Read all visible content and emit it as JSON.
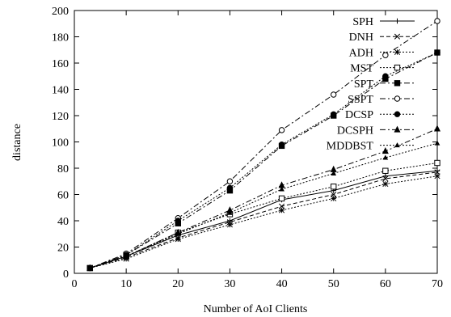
{
  "chart_data": {
    "type": "line",
    "title": "",
    "xlabel": "Number of AoI Clients",
    "ylabel": "distance",
    "xlim": [
      0,
      70
    ],
    "ylim": [
      0,
      200
    ],
    "xticks": [
      0,
      10,
      20,
      30,
      40,
      50,
      60,
      70
    ],
    "yticks": [
      0,
      20,
      40,
      60,
      80,
      100,
      120,
      140,
      160,
      180,
      200
    ],
    "grid": false,
    "legend_position": "top-right",
    "x": [
      3,
      10,
      20,
      30,
      40,
      50,
      60,
      70
    ],
    "series": [
      {
        "name": "SPH",
        "values": [
          4,
          13,
          29,
          40,
          56,
          63,
          74,
          78
        ],
        "marker": "plus",
        "dash": "solid"
      },
      {
        "name": "DNH",
        "values": [
          4,
          12,
          27,
          39,
          51,
          60,
          72,
          77
        ],
        "marker": "cross",
        "dash": "dashed"
      },
      {
        "name": "ADH",
        "values": [
          4,
          11,
          26,
          37,
          48,
          57,
          68,
          74
        ],
        "marker": "asterisk",
        "dash": "dotted"
      },
      {
        "name": "MST",
        "values": [
          4,
          13,
          31,
          45,
          57,
          66,
          78,
          84
        ],
        "marker": "square-open",
        "dash": "dotted"
      },
      {
        "name": "SPT",
        "values": [
          4,
          14,
          38,
          63,
          97,
          120,
          148,
          168
        ],
        "marker": "square-filled",
        "dash": "dashdot"
      },
      {
        "name": "SSPT",
        "values": [
          4,
          15,
          42,
          70,
          109,
          136,
          166,
          192
        ],
        "marker": "circle-open",
        "dash": "dashdot"
      },
      {
        "name": "DCSP",
        "values": [
          4,
          14,
          40,
          65,
          98,
          121,
          150,
          168
        ],
        "marker": "circle-filled",
        "dash": "dotted"
      },
      {
        "name": "DCSPH",
        "values": [
          4,
          13,
          31,
          48,
          67,
          79,
          93,
          110
        ],
        "marker": "triangle-filled",
        "dash": "dashdot"
      },
      {
        "name": "MDDBST",
        "values": [
          4,
          13,
          30,
          46,
          64,
          76,
          88,
          99
        ],
        "marker": "triangle-small",
        "dash": "dotted"
      }
    ]
  }
}
